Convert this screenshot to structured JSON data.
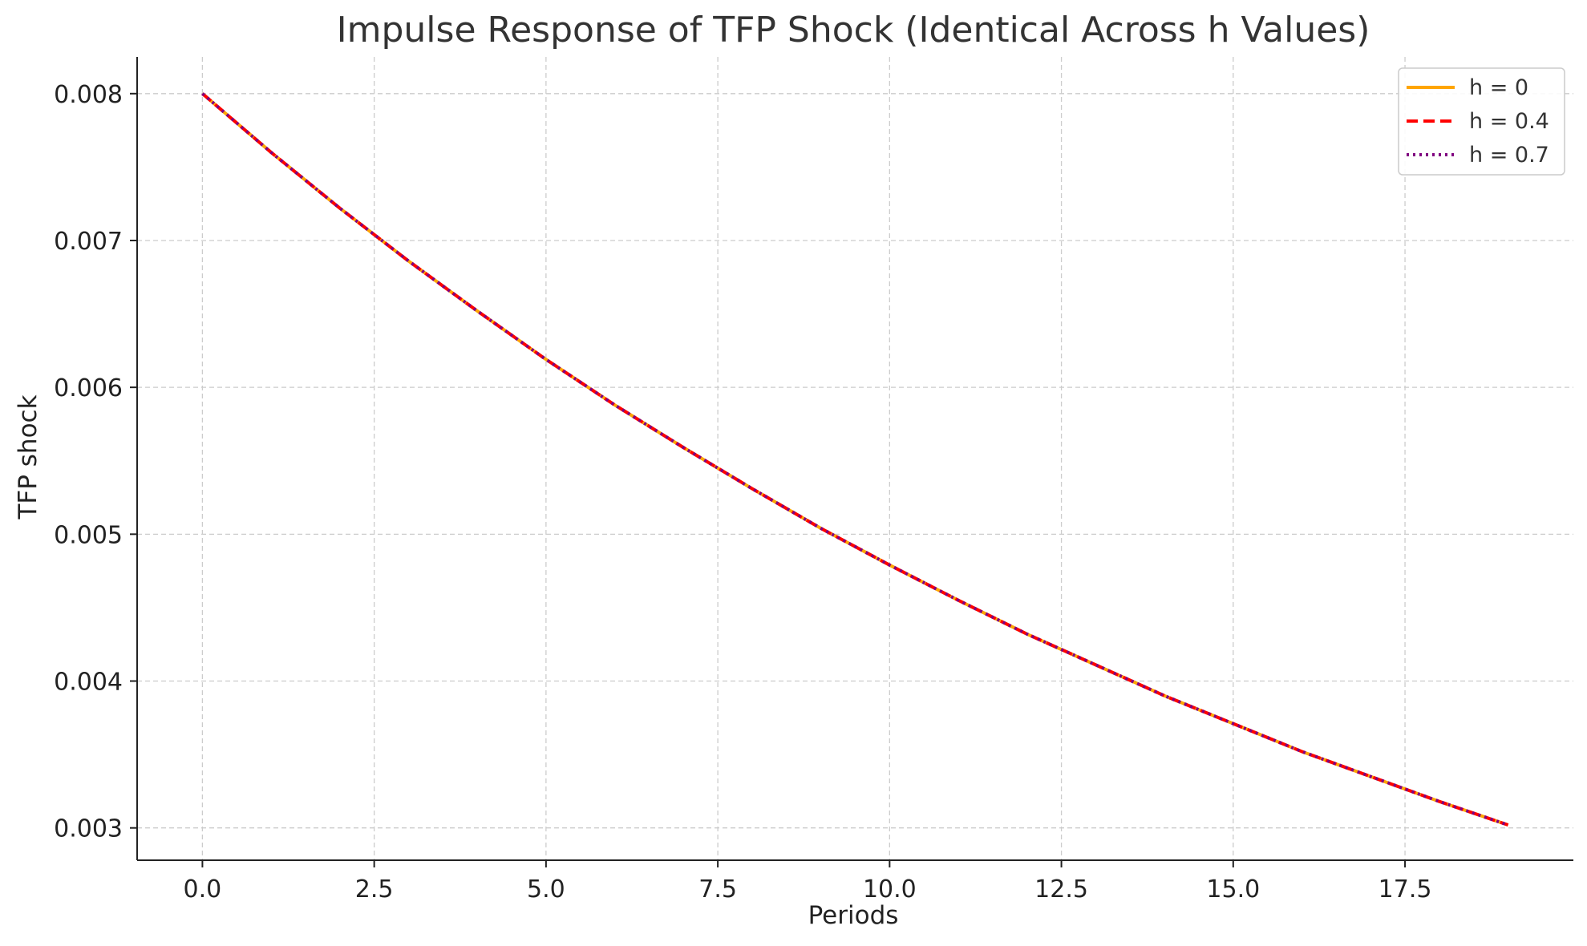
{
  "chart_data": {
    "type": "line",
    "title": "Impulse Response of TFP Shock (Identical Across h Values)",
    "xlabel": "Periods",
    "ylabel": "TFP shock",
    "xlim": [
      -0.95,
      19.95
    ],
    "ylim": [
      0.00278,
      0.00825
    ],
    "xticks": [
      0.0,
      2.5,
      5.0,
      7.5,
      10.0,
      12.5,
      15.0,
      17.5
    ],
    "xtick_labels": [
      "0.0",
      "2.5",
      "5.0",
      "7.5",
      "10.0",
      "12.5",
      "15.0",
      "17.5"
    ],
    "yticks": [
      0.003,
      0.004,
      0.005,
      0.006,
      0.007,
      0.008
    ],
    "ytick_labels": [
      "0.003",
      "0.004",
      "0.005",
      "0.006",
      "0.007",
      "0.008"
    ],
    "grid": true,
    "legend_position": "top-right",
    "x": [
      0,
      1,
      2,
      3,
      4,
      5,
      6,
      7,
      8,
      9,
      10,
      11,
      12,
      13,
      14,
      15,
      16,
      17,
      18,
      19
    ],
    "series": [
      {
        "name": "h = 0",
        "color": "#FFA500",
        "style": "solid",
        "values": [
          0.008,
          0.0076,
          0.00722,
          0.00686,
          0.00652,
          0.00619,
          0.00588,
          0.00559,
          0.00531,
          0.00504,
          0.00479,
          0.00455,
          0.00432,
          0.00411,
          0.0039,
          0.00371,
          0.00352,
          0.00335,
          0.00318,
          0.00302
        ]
      },
      {
        "name": "h = 0.4",
        "color": "#FF0000",
        "style": "dashed",
        "values": [
          0.008,
          0.0076,
          0.00722,
          0.00686,
          0.00652,
          0.00619,
          0.00588,
          0.00559,
          0.00531,
          0.00504,
          0.00479,
          0.00455,
          0.00432,
          0.00411,
          0.0039,
          0.00371,
          0.00352,
          0.00335,
          0.00318,
          0.00302
        ]
      },
      {
        "name": "h = 0.7",
        "color": "#800080",
        "style": "dotted",
        "values": [
          0.008,
          0.0076,
          0.00722,
          0.00686,
          0.00652,
          0.00619,
          0.00588,
          0.00559,
          0.00531,
          0.00504,
          0.00479,
          0.00455,
          0.00432,
          0.00411,
          0.0039,
          0.00371,
          0.00352,
          0.00335,
          0.00318,
          0.00302
        ]
      }
    ]
  }
}
